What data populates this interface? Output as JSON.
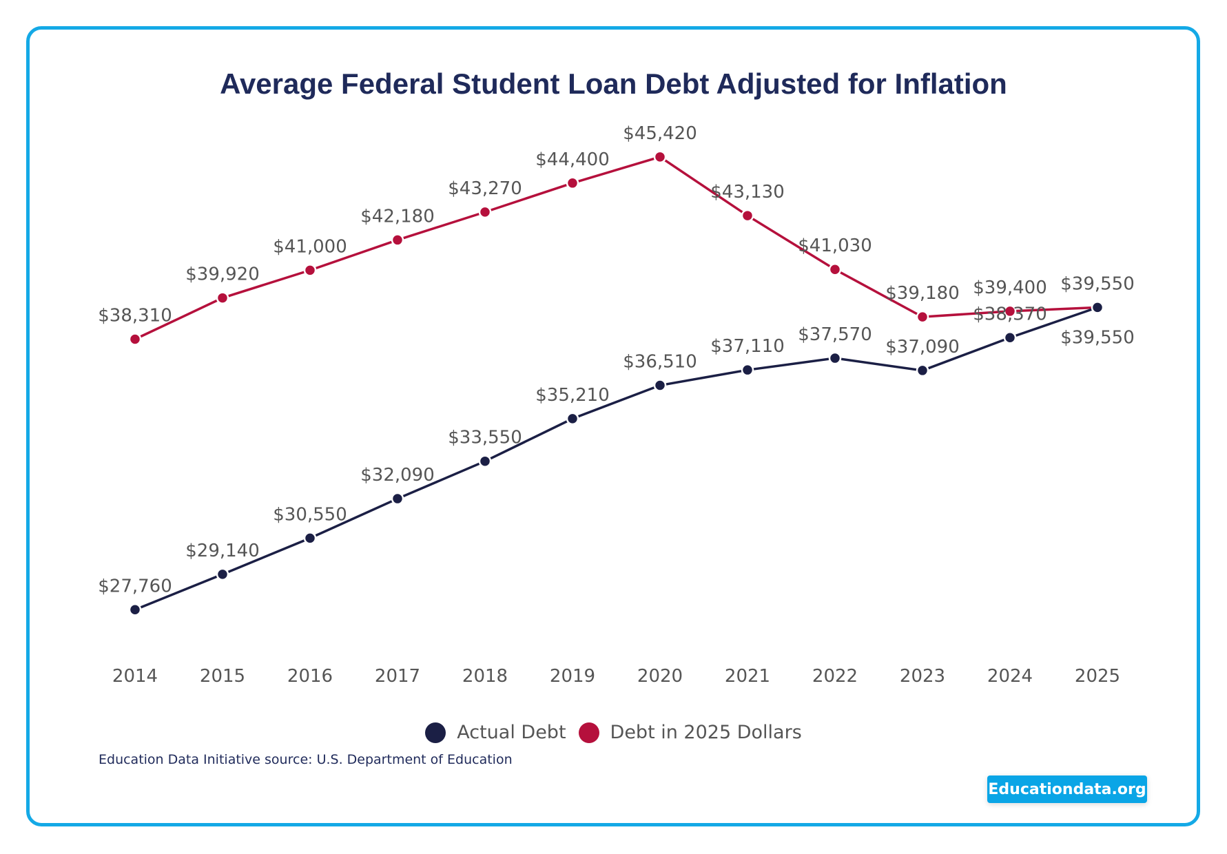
{
  "chart_data": {
    "type": "line",
    "title": "Average Federal Student Loan Debt Adjusted for Inflation",
    "categories": [
      "2014",
      "2015",
      "2016",
      "2017",
      "2018",
      "2019",
      "2020",
      "2021",
      "2022",
      "2023",
      "2024",
      "2025"
    ],
    "series": [
      {
        "name": "Actual Debt",
        "color": "#1b1f45",
        "values": [
          27760,
          29140,
          30550,
          32090,
          33550,
          35210,
          36510,
          37110,
          37570,
          37090,
          38370,
          39550
        ],
        "labels": [
          "$27,760",
          "$29,140",
          "$30,550",
          "$32,090",
          "$33,550",
          "$35,210",
          "$36,510",
          "$37,110",
          "$37,570",
          "$37,090",
          "$38,370",
          "$39,550"
        ]
      },
      {
        "name": "Debt in 2025 Dollars",
        "color": "#b5103c",
        "values": [
          38310,
          39920,
          41000,
          42180,
          43270,
          44400,
          45420,
          43130,
          41030,
          39180,
          39400,
          39550
        ],
        "labels": [
          "$38,310",
          "$39,920",
          "$41,000",
          "$42,180",
          "$43,270",
          "$44,400",
          "$45,420",
          "$43,130",
          "$41,030",
          "$39,180",
          "$39,400",
          "$39,550"
        ]
      }
    ],
    "ylim": [
      25000,
      47000
    ],
    "grid": false,
    "legend_placement": "bottom"
  },
  "footer": {
    "source": "Education Data Initiative source: U.S. Department of Education",
    "badge": "Educationdata.org"
  }
}
